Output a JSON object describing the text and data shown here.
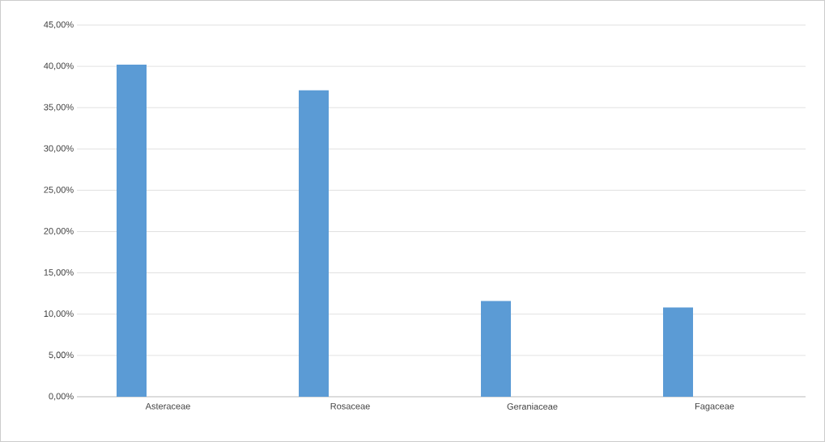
{
  "chart_data": {
    "type": "bar",
    "categories": [
      "Asteraceae",
      "Rosaceae",
      "Geraniaceae",
      "Fagaceae"
    ],
    "values": [
      40.2,
      37.1,
      11.6,
      10.8
    ],
    "color": "#5b9bd5",
    "ylim": [
      0,
      45
    ],
    "yticks": [
      {
        "value": 0,
        "label": "0,00%"
      },
      {
        "value": 5,
        "label": "5,00%"
      },
      {
        "value": 10,
        "label": "10,00%"
      },
      {
        "value": 15,
        "label": "15,00%"
      },
      {
        "value": 20,
        "label": "20,00%"
      },
      {
        "value": 25,
        "label": "25,00%"
      },
      {
        "value": 30,
        "label": "30,00%"
      },
      {
        "value": 35,
        "label": "35,00%"
      },
      {
        "value": 40,
        "label": "40,00%"
      },
      {
        "value": 45,
        "label": "45,00%"
      }
    ],
    "grid": "y"
  }
}
